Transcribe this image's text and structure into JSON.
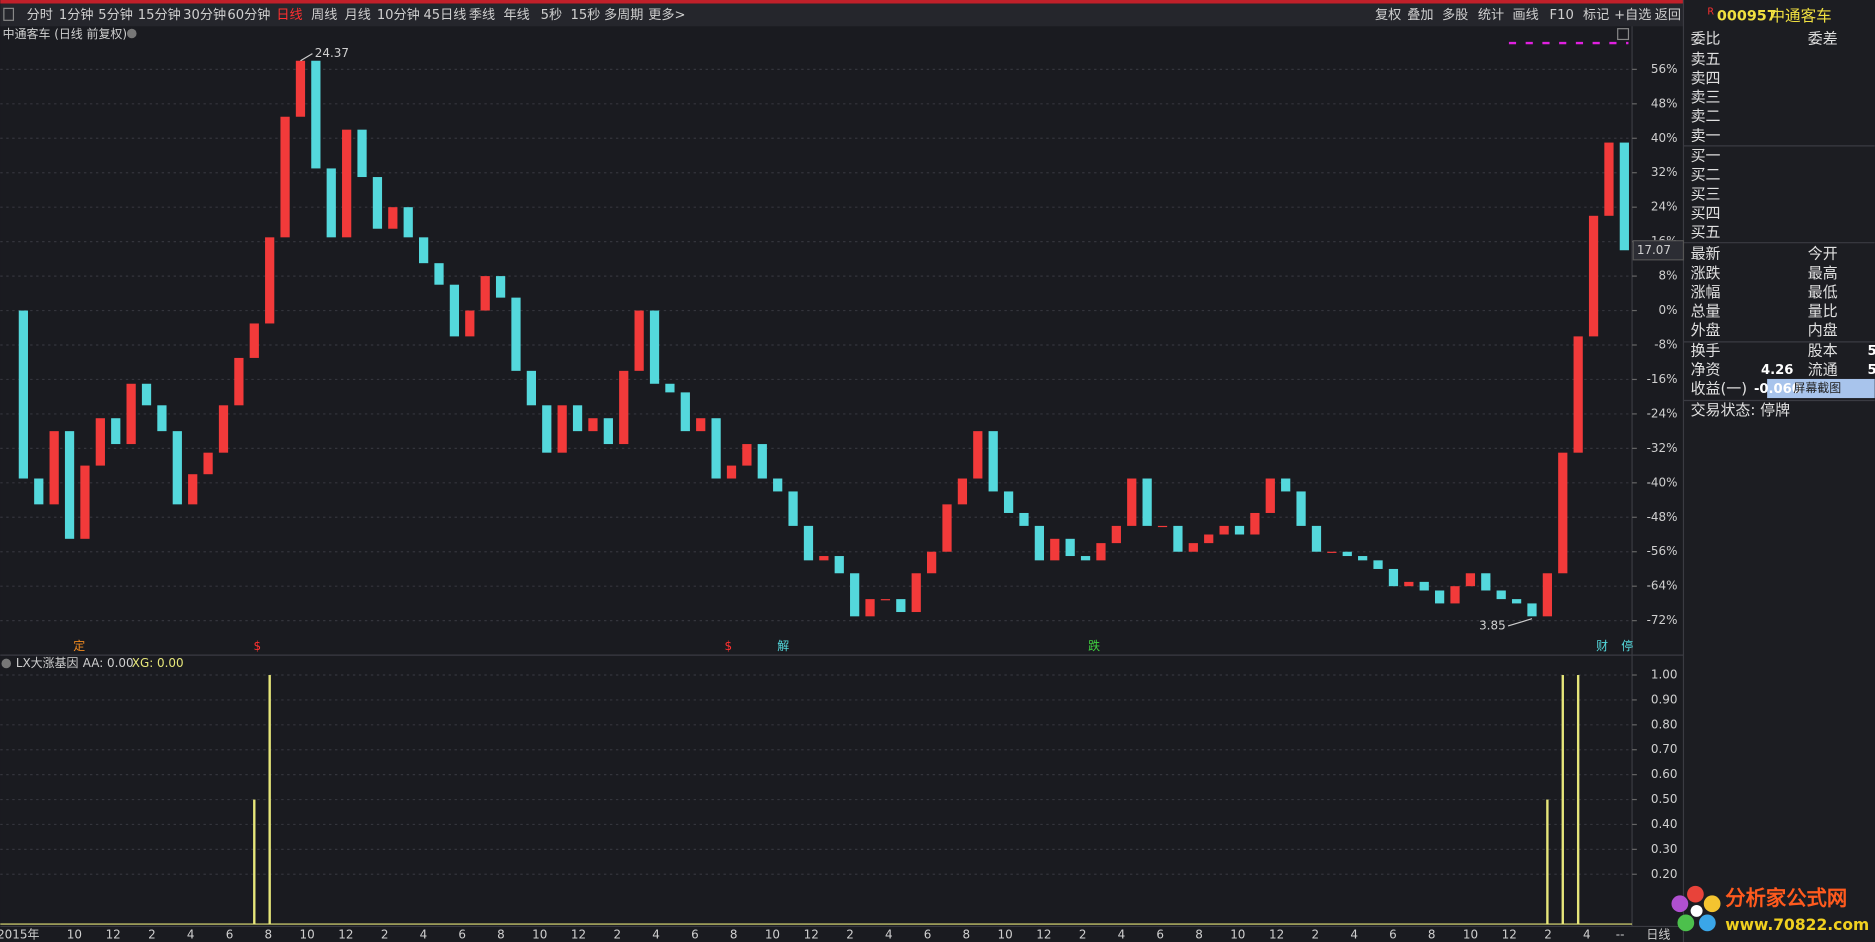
{
  "toolbar": {
    "periods": [
      "分时",
      "1分钟",
      "5分钟",
      "15分钟",
      "30分钟",
      "60分钟",
      "日线",
      "周线",
      "月线",
      "10分钟",
      "45日线",
      "季线",
      "年线",
      "5秒",
      "15秒",
      "多周期",
      "更多>"
    ],
    "tools": [
      "复权",
      "叠加",
      "多股",
      "统计",
      "画线",
      "F10",
      "标记",
      "+自选",
      "返回"
    ]
  },
  "chart_data": [
    {
      "type": "candlestick",
      "title": "中通客车 (日线 前复权)",
      "values": [
        0,
        -39,
        -45,
        -28,
        -53,
        -36,
        -25,
        -31,
        -17,
        -22,
        -28,
        -45,
        -38,
        -33,
        -22,
        -11,
        -3,
        17,
        45,
        58,
        33,
        17,
        42,
        31,
        19,
        24,
        17,
        11,
        6,
        -6,
        0,
        8,
        3,
        -14,
        -22,
        -33,
        -22,
        -28,
        -25,
        -31,
        -14,
        0,
        -17,
        -19,
        -28,
        -25,
        -39,
        -36,
        -31,
        -39,
        -42,
        -50,
        -58,
        -57,
        -61,
        -71,
        -67,
        -67,
        -70,
        -61,
        -56,
        -45,
        -39,
        -28,
        -42,
        -47,
        -50,
        -58,
        -53,
        -57,
        -58,
        -54,
        -50,
        -39,
        -50,
        -50,
        -56,
        -54,
        -52,
        -50,
        -52,
        -47,
        -39,
        -42,
        -50,
        -56,
        -56,
        -57,
        -58,
        -60,
        -64,
        -63,
        -65,
        -68,
        -64,
        -61,
        -65,
        -67,
        -68,
        -71,
        -61,
        -33,
        -6,
        22,
        39,
        14
      ],
      "up_color": "#f23a3a",
      "down_color": "#54d8dc",
      "ylim": [
        -80,
        66
      ],
      "yticks": [
        {
          "value": 56,
          "label": "56%"
        },
        {
          "value": 48,
          "label": "48%"
        },
        {
          "value": 40,
          "label": "40%"
        },
        {
          "value": 32,
          "label": "32%"
        },
        {
          "value": 24,
          "label": "24%"
        },
        {
          "value": 16,
          "label": "16%"
        },
        {
          "value": 8,
          "label": "8%"
        },
        {
          "value": 0,
          "label": "0%"
        },
        {
          "value": -8,
          "label": "-8%"
        },
        {
          "value": -16,
          "label": "-16%"
        },
        {
          "value": -24,
          "label": "-24%"
        },
        {
          "value": -32,
          "label": "-32%"
        },
        {
          "value": -40,
          "label": "-40%"
        },
        {
          "value": -48,
          "label": "-48%"
        },
        {
          "value": -56,
          "label": "-56%"
        },
        {
          "value": -64,
          "label": "-64%"
        },
        {
          "value": -72,
          "label": "-72%"
        }
      ],
      "grid": true,
      "high_label": "24.37",
      "low_label": "3.85",
      "last_label": "17.07",
      "markers": [
        "定",
        "$",
        "$",
        "解",
        "跌",
        "财",
        "停"
      ],
      "x_axis_labels": [
        "2015年",
        "10",
        "12",
        "2",
        "4",
        "6",
        "8",
        "10",
        "12",
        "2",
        "4",
        "6",
        "8",
        "10",
        "12",
        "2",
        "4",
        "6",
        "8",
        "10",
        "12",
        "2",
        "4",
        "6",
        "8",
        "10",
        "12",
        "2",
        "4",
        "6",
        "8",
        "10",
        "12",
        "2",
        "4",
        "6",
        "8",
        "10",
        "12",
        "2",
        "4",
        "--",
        "日线"
      ]
    },
    {
      "type": "bar",
      "title": "LX大涨基因",
      "legend": [
        "AA: 0.00",
        "XG: 0.00"
      ],
      "color": "#e6e67a",
      "values": [
        0,
        0,
        0,
        0,
        0,
        0,
        0,
        0,
        0,
        0,
        0,
        0,
        0,
        0,
        0,
        0,
        0.5,
        1,
        0,
        0,
        0,
        0,
        0,
        0,
        0,
        0,
        0,
        0,
        0,
        0,
        0,
        0,
        0,
        0,
        0,
        0,
        0,
        0,
        0,
        0,
        0,
        0,
        0,
        0,
        0,
        0,
        0,
        0,
        0,
        0,
        0,
        0,
        0,
        0,
        0,
        0,
        0,
        0,
        0,
        0,
        0,
        0,
        0,
        0,
        0,
        0,
        0,
        0,
        0,
        0,
        0,
        0,
        0,
        0,
        0,
        0,
        0,
        0,
        0,
        0,
        0,
        0,
        0,
        0,
        0,
        0,
        0,
        0,
        0,
        0,
        0,
        0,
        0,
        0,
        0,
        0,
        0,
        0,
        0,
        0,
        0.5,
        1,
        1,
        0,
        0,
        0
      ],
      "ylim": [
        0,
        1.08
      ],
      "yticks": [
        {
          "value": 1,
          "label": "1.00"
        },
        {
          "value": 0.9,
          "label": "0.90"
        },
        {
          "value": 0.8,
          "label": "0.80"
        },
        {
          "value": 0.7,
          "label": "0.70"
        },
        {
          "value": 0.6,
          "label": "0.60"
        },
        {
          "value": 0.5,
          "label": "0.50"
        },
        {
          "value": 0.4,
          "label": "0.40"
        },
        {
          "value": 0.3,
          "label": "0.30"
        },
        {
          "value": 0.2,
          "label": "0.20"
        }
      ],
      "grid": true
    }
  ],
  "quote_panel": {
    "flag": "R",
    "code": "000957",
    "name": "中通客车",
    "header": [
      "委比",
      "委差"
    ],
    "asks": [
      "卖五",
      "卖四",
      "卖三",
      "卖二",
      "卖一"
    ],
    "bids": [
      "买一",
      "买二",
      "买三",
      "买四",
      "买五"
    ],
    "rows": [
      [
        "最新",
        "今开"
      ],
      [
        "涨跌",
        "最高"
      ],
      [
        "涨幅",
        "最低"
      ],
      [
        "总量",
        "量比"
      ],
      [
        "外盘",
        "内盘"
      ]
    ],
    "rows2": [
      {
        "left": "换手",
        "right": "股本",
        "right_value": "5"
      },
      {
        "left": "净资",
        "left_value": "4.26",
        "right": "流通",
        "right_value": "5"
      },
      {
        "left": "收益(一)",
        "left_value": "-0.060"
      }
    ],
    "status": "交易状态: 停牌",
    "tooltip": "屏幕截图"
  },
  "logo": {
    "name": "分析家公式网",
    "url": "www.70822.com"
  }
}
